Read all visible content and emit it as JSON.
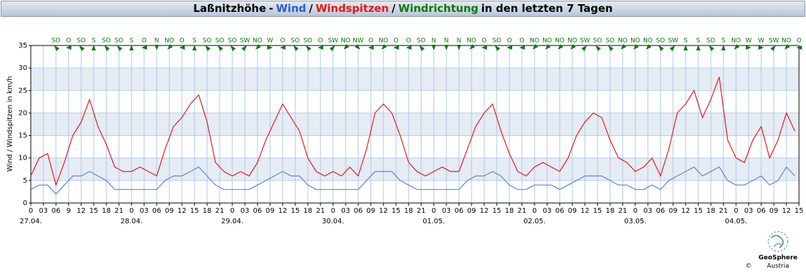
{
  "chart_data": {
    "type": "line",
    "title_parts": [
      {
        "text": "Laßnitzhöhe",
        "color": "#000000"
      },
      {
        "text": "-",
        "color": "#000000"
      },
      {
        "text": "Wind",
        "color": "#2a5bd7"
      },
      {
        "text": "/",
        "color": "#000000"
      },
      {
        "text": "Windspitzen",
        "color": "#e8161a"
      },
      {
        "text": "/",
        "color": "#000000"
      },
      {
        "text": "Windrichtung",
        "color": "#0a7a0a"
      },
      {
        "text": "in den letzten 7 Tagen",
        "color": "#000000"
      }
    ],
    "y_label": "Wind / Windspitzen in km/h",
    "x": [
      0,
      2,
      4,
      6,
      8,
      10,
      12,
      14,
      16,
      18,
      20,
      22,
      24,
      26,
      28,
      30,
      32,
      34,
      36,
      38,
      40,
      42,
      44,
      46,
      48,
      50,
      52,
      54,
      56,
      58,
      60,
      62,
      64,
      66,
      68,
      70,
      72,
      74,
      76,
      78,
      80,
      82,
      84,
      86,
      88,
      90,
      92,
      94,
      96,
      98,
      100,
      102,
      104,
      106,
      108,
      110,
      112,
      114,
      116,
      118,
      120,
      122,
      124,
      126,
      128,
      130,
      132,
      134,
      136,
      138,
      140,
      142,
      144,
      146,
      148,
      150,
      152,
      154,
      156,
      158,
      160,
      162,
      164,
      166,
      168,
      170,
      172,
      174,
      176,
      178,
      180,
      182
    ],
    "series": [
      {
        "name": "Windspitzen",
        "color": "#e8161a",
        "values": [
          6,
          10,
          11,
          4,
          9,
          15,
          18,
          23,
          17,
          13,
          8,
          7,
          7,
          8,
          7,
          6,
          12,
          17,
          19,
          22,
          24,
          18,
          9,
          7,
          6,
          7,
          6,
          9,
          14,
          18,
          22,
          19,
          16,
          10,
          7,
          6,
          7,
          6,
          8,
          6,
          12,
          20,
          22,
          20,
          15,
          9,
          7,
          6,
          7,
          8,
          7,
          7,
          12,
          17,
          20,
          22,
          16,
          11,
          7,
          6,
          8,
          9,
          8,
          7,
          10,
          15,
          18,
          20,
          19,
          14,
          10,
          9,
          7,
          8,
          10,
          6,
          12,
          20,
          22,
          25,
          19,
          23,
          28,
          14,
          10,
          9,
          14,
          17,
          10,
          14,
          20,
          16
        ]
      },
      {
        "name": "Wind",
        "color": "#5b82dc",
        "values": [
          3,
          4,
          4,
          2,
          4,
          6,
          6,
          7,
          6,
          5,
          3,
          3,
          3,
          3,
          3,
          3,
          5,
          6,
          6,
          7,
          8,
          6,
          4,
          3,
          3,
          3,
          3,
          4,
          5,
          6,
          7,
          6,
          6,
          4,
          3,
          3,
          3,
          3,
          3,
          3,
          5,
          7,
          7,
          7,
          5,
          4,
          3,
          3,
          3,
          3,
          3,
          3,
          5,
          6,
          6,
          7,
          6,
          4,
          3,
          3,
          4,
          4,
          4,
          3,
          4,
          5,
          6,
          6,
          6,
          5,
          4,
          4,
          3,
          3,
          4,
          3,
          5,
          6,
          7,
          8,
          6,
          7,
          8,
          5,
          4,
          4,
          5,
          6,
          4,
          5,
          8,
          6
        ]
      }
    ],
    "direction_color": "#0a7a0a",
    "direction_x": [
      6,
      9,
      12,
      15,
      18,
      21,
      24,
      27,
      30,
      33,
      36,
      39,
      42,
      45,
      48,
      51,
      54,
      57,
      60,
      63,
      66,
      69,
      72,
      75,
      78,
      81,
      84,
      87,
      90,
      93,
      96,
      99,
      102,
      105,
      108,
      111,
      114,
      117,
      120,
      123,
      126,
      129,
      132,
      135,
      138,
      141,
      144,
      147,
      150,
      153,
      156,
      159,
      162,
      165,
      168,
      171,
      174,
      177,
      180,
      183
    ],
    "directions": [
      "SO",
      "O",
      "SO",
      "S",
      "SO",
      "SO",
      "S",
      "O",
      "N",
      "NO",
      "O",
      "S",
      "SO",
      "SO",
      "SO",
      "SW",
      "NO",
      "W",
      "O",
      "SO",
      "SO",
      "O",
      "SW",
      "NO",
      "NW",
      "O",
      "NO",
      "O",
      "O",
      "SO",
      "N",
      "N",
      "N",
      "NO",
      "O",
      "SO",
      "O",
      "O",
      "NO",
      "NO",
      "NO",
      "NO",
      "SW",
      "SO",
      "SO",
      "NO",
      "NO",
      "NO",
      "SO",
      "SW",
      "S",
      "S",
      "SO",
      "S",
      "NO",
      "W",
      "W",
      "SW",
      "NO",
      "O"
    ],
    "xlim": [
      0,
      183
    ],
    "ylim": [
      0,
      35
    ],
    "yticks": [
      0,
      5,
      10,
      15,
      20,
      25,
      30,
      35
    ],
    "xticks": [
      0,
      {
        "value": 3,
        "label": "03"
      },
      {
        "value": 6,
        "label": "06"
      },
      9,
      12,
      15,
      18,
      21,
      {
        "value": 24,
        "label": "0"
      },
      {
        "value": 27,
        "label": "03"
      },
      {
        "value": 30,
        "label": "06"
      },
      {
        "value": 33,
        "label": "09"
      },
      {
        "value": 36,
        "label": "12"
      },
      {
        "value": 39,
        "label": "15"
      },
      {
        "value": 42,
        "label": "18"
      },
      {
        "value": 45,
        "label": "21"
      },
      {
        "value": 48,
        "label": "0"
      },
      {
        "value": 51,
        "label": "03"
      },
      {
        "value": 54,
        "label": "06"
      },
      {
        "value": 57,
        "label": "09"
      },
      {
        "value": 60,
        "label": "12"
      },
      {
        "value": 63,
        "label": "15"
      },
      {
        "value": 66,
        "label": "18"
      },
      {
        "value": 69,
        "label": "21"
      },
      {
        "value": 72,
        "label": "0"
      },
      {
        "value": 75,
        "label": "03"
      },
      {
        "value": 78,
        "label": "06"
      },
      {
        "value": 81,
        "label": "09"
      },
      {
        "value": 84,
        "label": "12"
      },
      {
        "value": 87,
        "label": "15"
      },
      {
        "value": 90,
        "label": "18"
      },
      {
        "value": 93,
        "label": "21"
      },
      {
        "value": 96,
        "label": "0"
      },
      {
        "value": 99,
        "label": "03"
      },
      {
        "value": 102,
        "label": "06"
      },
      {
        "value": 105,
        "label": "09"
      },
      {
        "value": 108,
        "label": "12"
      },
      {
        "value": 111,
        "label": "15"
      },
      {
        "value": 114,
        "label": "18"
      },
      {
        "value": 117,
        "label": "21"
      },
      {
        "value": 120,
        "label": "0"
      },
      {
        "value": 123,
        "label": "03"
      },
      {
        "value": 126,
        "label": "06"
      },
      {
        "value": 129,
        "label": "09"
      },
      {
        "value": 132,
        "label": "12"
      },
      {
        "value": 135,
        "label": "15"
      },
      {
        "value": 138,
        "label": "18"
      },
      {
        "value": 141,
        "label": "21"
      },
      {
        "value": 144,
        "label": "0"
      },
      {
        "value": 147,
        "label": "03"
      },
      {
        "value": 150,
        "label": "06"
      },
      {
        "value": 153,
        "label": "09"
      },
      {
        "value": 156,
        "label": "12"
      },
      {
        "value": 159,
        "label": "15"
      },
      {
        "value": 162,
        "label": "18"
      },
      {
        "value": 165,
        "label": "21"
      },
      {
        "value": 168,
        "label": "0"
      },
      {
        "value": 171,
        "label": "03"
      },
      {
        "value": 174,
        "label": "06"
      },
      {
        "value": 177,
        "label": "09"
      },
      {
        "value": 180,
        "label": "12"
      },
      {
        "value": 183,
        "label": "15"
      }
    ],
    "date_ticks": [
      {
        "value": 0,
        "label": "27.04."
      },
      {
        "value": 24,
        "label": "28.04."
      },
      {
        "value": 48,
        "label": "29.04."
      },
      {
        "value": 72,
        "label": "30.04."
      },
      {
        "value": 96,
        "label": "01.05."
      },
      {
        "value": 120,
        "label": "02.05."
      },
      {
        "value": 144,
        "label": "03.05."
      },
      {
        "value": 168,
        "label": "04.05."
      }
    ],
    "grid": true,
    "logo": {
      "name": "GeoSphere",
      "sub": "Austria",
      "copyright": "©"
    }
  }
}
